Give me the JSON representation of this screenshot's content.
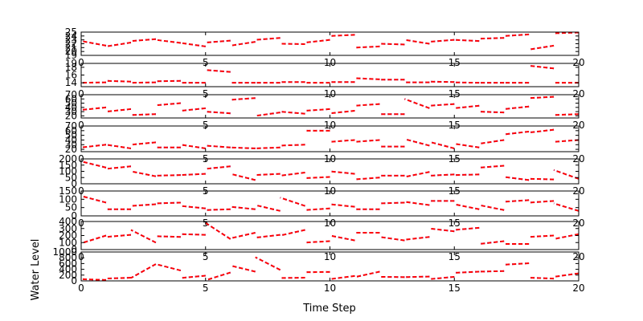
{
  "figure": {
    "xlabel": "Time Step",
    "ylabel": "Water Level"
  },
  "chart_data": [
    {
      "type": "line",
      "xlim": [
        0,
        20
      ],
      "ylim": [
        19,
        25
      ],
      "yticks": [
        "19",
        "20",
        "21",
        "22",
        "23",
        "24",
        "25"
      ],
      "xticks": [
        "0",
        "5",
        "10",
        "15",
        "20"
      ],
      "segments": [
        [
          1.0,
          21.5,
          0.0,
          22.7
        ],
        [
          2.0,
          22.3,
          1.0,
          21.3
        ],
        [
          3.0,
          23.2,
          2.0,
          22.7
        ],
        [
          4.0,
          22.2,
          3.0,
          23.0
        ],
        [
          5.0,
          21.3,
          4.0,
          22.2
        ],
        [
          6.0,
          22.8,
          5.0,
          22.3
        ],
        [
          7.0,
          22.5,
          6.0,
          21.5
        ],
        [
          8.0,
          23.5,
          7.0,
          23.0
        ],
        [
          9.0,
          21.9,
          8.0,
          22.0
        ],
        [
          10.0,
          23.0,
          9.0,
          22.3
        ],
        [
          11.0,
          24.3,
          10.0,
          24.0
        ],
        [
          12.0,
          21.3,
          11.0,
          21.0
        ],
        [
          13.0,
          21.8,
          12.0,
          22.0
        ],
        [
          14.0,
          22.0,
          13.0,
          23.0
        ],
        [
          15.0,
          23.0,
          14.0,
          22.5
        ],
        [
          16.0,
          22.7,
          15.0,
          23.0
        ],
        [
          17.0,
          23.5,
          16.0,
          23.3
        ],
        [
          18.0,
          24.4,
          17.0,
          24.0
        ],
        [
          19.0,
          21.5,
          18.0,
          20.5
        ],
        [
          20.0,
          24.9,
          19.0,
          24.7
        ]
      ]
    },
    {
      "type": "line",
      "xlim": [
        0,
        20
      ],
      "ylim": [
        13,
        19
      ],
      "yticks": [
        "14",
        "16",
        "18",
        "19"
      ],
      "xticks": [
        "0",
        "5",
        "10",
        "15",
        "20"
      ],
      "segments": [
        [
          1.0,
          14.1,
          0.0,
          14.0
        ],
        [
          2.0,
          14.3,
          1.0,
          14.5
        ],
        [
          3.0,
          14.1,
          2.0,
          14.0
        ],
        [
          4.0,
          14.5,
          3.0,
          14.4
        ],
        [
          5.0,
          14.0,
          4.0,
          14.0
        ],
        [
          6.0,
          16.8,
          5.0,
          17.3
        ],
        [
          7.0,
          14.0,
          6.0,
          14.0
        ],
        [
          8.0,
          14.0,
          7.0,
          14.0
        ],
        [
          9.0,
          14.2,
          8.0,
          14.2
        ],
        [
          10.0,
          14.0,
          9.0,
          14.0
        ],
        [
          11.0,
          14.2,
          10.0,
          14.2
        ],
        [
          12.0,
          14.9,
          11.0,
          15.2
        ],
        [
          13.0,
          14.8,
          12.0,
          14.8
        ],
        [
          14.0,
          14.1,
          13.0,
          14.1
        ],
        [
          15.0,
          14.2,
          14.0,
          14.3
        ],
        [
          16.0,
          14.0,
          15.0,
          14.1
        ],
        [
          17.0,
          14.0,
          16.0,
          14.0
        ],
        [
          18.0,
          14.0,
          17.0,
          14.0
        ],
        [
          19.0,
          17.7,
          18.0,
          18.4
        ],
        [
          20.0,
          14.0,
          19.0,
          14.0
        ]
      ]
    },
    {
      "type": "line",
      "xlim": [
        0,
        20
      ],
      "ylim": [
        15,
        70
      ],
      "yticks": [
        "20",
        "30",
        "40",
        "50",
        "60",
        "70"
      ],
      "xticks": [
        "0",
        "5",
        "10",
        "15",
        "20"
      ],
      "segments": [
        [
          1.0,
          40.0,
          0.0,
          34.0
        ],
        [
          2.0,
          36.0,
          1.0,
          30.0
        ],
        [
          3.0,
          24.0,
          2.0,
          22.0
        ],
        [
          4.0,
          50.0,
          3.0,
          45.0
        ],
        [
          5.0,
          38.0,
          4.0,
          32.0
        ],
        [
          6.0,
          26.0,
          5.0,
          30.0
        ],
        [
          7.0,
          62.0,
          6.0,
          58.0
        ],
        [
          8.0,
          28.0,
          7.0,
          20.0
        ],
        [
          9.0,
          25.0,
          8.0,
          30.0
        ],
        [
          10.0,
          36.0,
          9.0,
          32.0
        ],
        [
          11.0,
          32.0,
          10.0,
          26.0
        ],
        [
          12.0,
          48.0,
          11.0,
          44.0
        ],
        [
          13.0,
          24.0,
          12.0,
          24.0
        ],
        [
          14.0,
          38.0,
          13.0,
          60.0
        ],
        [
          15.0,
          48.0,
          14.0,
          44.0
        ],
        [
          16.0,
          44.0,
          15.0,
          38.0
        ],
        [
          17.0,
          28.0,
          16.0,
          30.0
        ],
        [
          18.0,
          42.0,
          17.0,
          36.0
        ],
        [
          19.0,
          65.0,
          18.0,
          62.0
        ],
        [
          20.0,
          24.0,
          19.0,
          22.0
        ]
      ]
    },
    {
      "type": "line",
      "xlim": [
        0,
        20
      ],
      "ylim": [
        15,
        70
      ],
      "yticks": [
        "20",
        "30",
        "40",
        "50",
        "60",
        "70"
      ],
      "xticks": [
        "0",
        "5",
        "10",
        "15",
        "20"
      ],
      "segments": [
        [
          1.0,
          30.0,
          0.0,
          24.0
        ],
        [
          2.0,
          22.0,
          1.0,
          30.0
        ],
        [
          3.0,
          35.0,
          2.0,
          30.0
        ],
        [
          4.0,
          24.0,
          3.0,
          24.0
        ],
        [
          5.0,
          22.0,
          4.0,
          30.0
        ],
        [
          6.0,
          24.0,
          5.0,
          28.0
        ],
        [
          7.0,
          22.0,
          6.0,
          24.0
        ],
        [
          8.0,
          24.0,
          7.0,
          22.0
        ],
        [
          9.0,
          30.0,
          8.0,
          28.0
        ],
        [
          10.0,
          60.0,
          9.0,
          60.0
        ],
        [
          11.0,
          40.0,
          10.0,
          36.0
        ],
        [
          12.0,
          40.0,
          11.0,
          36.0
        ],
        [
          13.0,
          26.0,
          12.0,
          26.0
        ],
        [
          14.0,
          28.0,
          13.0,
          42.0
        ],
        [
          15.0,
          22.0,
          14.0,
          36.0
        ],
        [
          16.0,
          24.0,
          15.0,
          32.0
        ],
        [
          17.0,
          40.0,
          16.0,
          32.0
        ],
        [
          18.0,
          58.0,
          17.0,
          52.0
        ],
        [
          19.0,
          62.0,
          18.0,
          56.0
        ],
        [
          20.0,
          40.0,
          19.0,
          36.0
        ]
      ]
    },
    {
      "type": "line",
      "xlim": [
        0,
        20
      ],
      "ylim": [
        0,
        200
      ],
      "yticks": [
        "0",
        "50",
        "100",
        "150",
        "200"
      ],
      "xticks": [
        "0",
        "5",
        "10",
        "15",
        "20"
      ],
      "segments": [
        [
          1.0,
          130.0,
          0.0,
          180.0
        ],
        [
          2.0,
          140.0,
          1.0,
          120.0
        ],
        [
          3.0,
          60.0,
          2.0,
          100.0
        ],
        [
          4.0,
          70.0,
          3.0,
          65.0
        ],
        [
          5.0,
          80.0,
          4.0,
          70.0
        ],
        [
          6.0,
          140.0,
          5.0,
          120.0
        ],
        [
          7.0,
          30.0,
          6.0,
          80.0
        ],
        [
          8.0,
          80.0,
          7.0,
          70.0
        ],
        [
          9.0,
          90.0,
          8.0,
          65.0
        ],
        [
          10.0,
          55.0,
          9.0,
          45.0
        ],
        [
          11.0,
          80.0,
          10.0,
          100.0
        ],
        [
          12.0,
          50.0,
          11.0,
          35.0
        ],
        [
          13.0,
          65.0,
          12.0,
          65.0
        ],
        [
          14.0,
          95.0,
          13.0,
          55.0
        ],
        [
          15.0,
          75.0,
          14.0,
          65.0
        ],
        [
          16.0,
          75.0,
          15.0,
          70.0
        ],
        [
          17.0,
          145.0,
          16.0,
          130.0
        ],
        [
          18.0,
          30.0,
          17.0,
          55.0
        ],
        [
          19.0,
          35.0,
          18.0,
          40.0
        ],
        [
          20.0,
          40.0,
          19.0,
          110.0
        ]
      ]
    },
    {
      "type": "line",
      "xlim": [
        0,
        20
      ],
      "ylim": [
        0,
        150
      ],
      "yticks": [
        "0",
        "50",
        "100",
        "150"
      ],
      "xticks": [
        "0",
        "5",
        "10",
        "15",
        "20"
      ],
      "segments": [
        [
          1.0,
          80.0,
          0.0,
          120.0
        ],
        [
          2.0,
          40.0,
          1.0,
          40.0
        ],
        [
          3.0,
          70.0,
          2.0,
          60.0
        ],
        [
          4.0,
          80.0,
          3.0,
          75.0
        ],
        [
          5.0,
          45.0,
          4.0,
          60.0
        ],
        [
          6.0,
          40.0,
          5.0,
          35.0
        ],
        [
          7.0,
          40.0,
          6.0,
          55.0
        ],
        [
          8.0,
          30.0,
          7.0,
          65.0
        ],
        [
          9.0,
          60.0,
          8.0,
          110.0
        ],
        [
          10.0,
          45.0,
          9.0,
          35.0
        ],
        [
          11.0,
          55.0,
          10.0,
          70.0
        ],
        [
          12.0,
          40.0,
          11.0,
          40.0
        ],
        [
          13.0,
          80.0,
          12.0,
          75.0
        ],
        [
          14.0,
          65.0,
          13.0,
          85.0
        ],
        [
          15.0,
          90.0,
          14.0,
          90.0
        ],
        [
          16.0,
          40.0,
          15.0,
          70.0
        ],
        [
          17.0,
          35.0,
          16.0,
          65.0
        ],
        [
          18.0,
          95.0,
          17.0,
          85.0
        ],
        [
          19.0,
          90.0,
          18.0,
          80.0
        ],
        [
          20.0,
          30.0,
          19.0,
          75.0
        ]
      ]
    },
    {
      "type": "line",
      "xlim": [
        0,
        20
      ],
      "ylim": [
        0,
        400
      ],
      "yticks": [
        "0",
        "100",
        "200",
        "300",
        "400"
      ],
      "xticks": [
        "0",
        "5",
        "10",
        "15",
        "20"
      ],
      "segments": [
        [
          1.0,
          200.0,
          0.0,
          90.0
        ],
        [
          2.0,
          210.0,
          1.0,
          180.0
        ],
        [
          3.0,
          100.0,
          2.0,
          280.0
        ],
        [
          4.0,
          180.0,
          3.0,
          190.0
        ],
        [
          5.0,
          210.0,
          4.0,
          220.0
        ],
        [
          6.0,
          150.0,
          5.0,
          380.0
        ],
        [
          7.0,
          240.0,
          6.0,
          160.0
        ],
        [
          8.0,
          210.0,
          7.0,
          170.0
        ],
        [
          9.0,
          280.0,
          8.0,
          200.0
        ],
        [
          10.0,
          120.0,
          9.0,
          100.0
        ],
        [
          11.0,
          130.0,
          10.0,
          200.0
        ],
        [
          12.0,
          240.0,
          11.0,
          240.0
        ],
        [
          13.0,
          130.0,
          12.0,
          180.0
        ],
        [
          14.0,
          180.0,
          13.0,
          140.0
        ],
        [
          15.0,
          260.0,
          14.0,
          300.0
        ],
        [
          16.0,
          310.0,
          15.0,
          280.0
        ],
        [
          17.0,
          120.0,
          16.0,
          80.0
        ],
        [
          18.0,
          80.0,
          17.0,
          80.0
        ],
        [
          19.0,
          200.0,
          18.0,
          180.0
        ],
        [
          20.0,
          220.0,
          19.0,
          150.0
        ]
      ]
    },
    {
      "type": "line",
      "xlim": [
        0,
        20
      ],
      "ylim": [
        0,
        1000
      ],
      "yticks": [
        "0",
        "200",
        "400",
        "600",
        "800",
        "1000"
      ],
      "xticks": [
        "0",
        "5",
        "10",
        "15",
        "20"
      ],
      "segments": [
        [
          1.0,
          30.0,
          0.0,
          60.0
        ],
        [
          2.0,
          110.0,
          1.0,
          80.0
        ],
        [
          3.0,
          580.0,
          2.0,
          100.0
        ],
        [
          4.0,
          360.0,
          3.0,
          580.0
        ],
        [
          5.0,
          180.0,
          4.0,
          100.0
        ],
        [
          6.0,
          290.0,
          5.0,
          20.0
        ],
        [
          7.0,
          320.0,
          6.0,
          530.0
        ],
        [
          8.0,
          380.0,
          7.0,
          820.0
        ],
        [
          9.0,
          110.0,
          8.0,
          100.0
        ],
        [
          10.0,
          310.0,
          9.0,
          300.0
        ],
        [
          11.0,
          170.0,
          10.0,
          60.0
        ],
        [
          12.0,
          320.0,
          11.0,
          130.0
        ],
        [
          13.0,
          130.0,
          12.0,
          140.0
        ],
        [
          14.0,
          150.0,
          13.0,
          130.0
        ],
        [
          15.0,
          140.0,
          14.0,
          60.0
        ],
        [
          16.0,
          320.0,
          15.0,
          280.0
        ],
        [
          17.0,
          340.0,
          16.0,
          320.0
        ],
        [
          18.0,
          610.0,
          17.0,
          560.0
        ],
        [
          19.0,
          80.0,
          18.0,
          110.0
        ],
        [
          20.0,
          260.0,
          19.0,
          140.0
        ]
      ]
    }
  ]
}
